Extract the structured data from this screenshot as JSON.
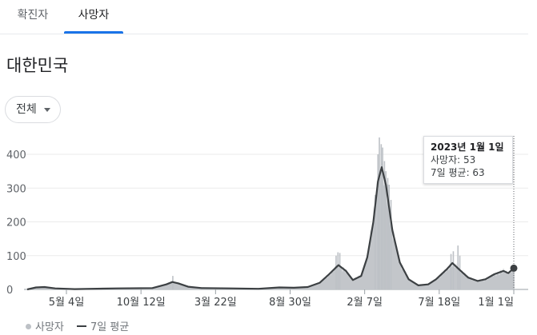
{
  "tabs": [
    {
      "label": "확진자",
      "active": false
    },
    {
      "label": "사망자",
      "active": true
    }
  ],
  "region_title": "대한민국",
  "period_dropdown": {
    "selected": "전체"
  },
  "tooltip": {
    "date": "2023년 1월 1일",
    "deaths_line": "사망자: 53",
    "avg_line": "7일 평균: 63"
  },
  "legend": {
    "series1": "사망자",
    "series2": "7일 평균"
  },
  "colors": {
    "bars": "#bdc1c6",
    "avg_line": "#3c4043",
    "tab_accent": "#1a73e8",
    "area_fill": "#c3c6ca"
  },
  "chart_data": {
    "type": "bar",
    "xlabel": "",
    "ylabel": "",
    "ylim": [
      0,
      450
    ],
    "yticks": [
      0,
      100,
      200,
      300,
      400
    ],
    "xtick_labels": [
      "5월 4일",
      "10월 12일",
      "3월 22일",
      "8월 30일",
      "2월 7일",
      "7월 18일",
      "1월 1일"
    ],
    "x_start": "2020-02-20",
    "x_end": "2023-01-01",
    "series": [
      {
        "name": "7일 평균",
        "type": "line",
        "points": [
          [
            "2020-02-20",
            0
          ],
          [
            "2020-03-10",
            6
          ],
          [
            "2020-03-28",
            7
          ],
          [
            "2020-04-20",
            3
          ],
          [
            "2020-06-01",
            1
          ],
          [
            "2020-09-01",
            3
          ],
          [
            "2020-11-15",
            4
          ],
          [
            "2020-12-15",
            15
          ],
          [
            "2020-12-28",
            22
          ],
          [
            "2021-01-10",
            18
          ],
          [
            "2021-01-31",
            8
          ],
          [
            "2021-03-01",
            4
          ],
          [
            "2021-05-01",
            3
          ],
          [
            "2021-07-01",
            2
          ],
          [
            "2021-08-15",
            6
          ],
          [
            "2021-09-15",
            5
          ],
          [
            "2021-10-15",
            7
          ],
          [
            "2021-11-10",
            20
          ],
          [
            "2021-11-30",
            45
          ],
          [
            "2021-12-20",
            72
          ],
          [
            "2022-01-05",
            55
          ],
          [
            "2022-01-20",
            28
          ],
          [
            "2022-02-07",
            40
          ],
          [
            "2022-02-20",
            95
          ],
          [
            "2022-03-05",
            200
          ],
          [
            "2022-03-15",
            320
          ],
          [
            "2022-03-23",
            362
          ],
          [
            "2022-04-01",
            310
          ],
          [
            "2022-04-15",
            175
          ],
          [
            "2022-05-01",
            80
          ],
          [
            "2022-05-20",
            30
          ],
          [
            "2022-06-10",
            12
          ],
          [
            "2022-07-01",
            15
          ],
          [
            "2022-07-18",
            30
          ],
          [
            "2022-08-10",
            60
          ],
          [
            "2022-08-22",
            78
          ],
          [
            "2022-09-05",
            60
          ],
          [
            "2022-09-25",
            35
          ],
          [
            "2022-10-15",
            25
          ],
          [
            "2022-11-01",
            30
          ],
          [
            "2022-11-20",
            45
          ],
          [
            "2022-12-10",
            55
          ],
          [
            "2022-12-20",
            48
          ],
          [
            "2023-01-01",
            63
          ]
        ]
      },
      {
        "name": "사망자",
        "type": "bar",
        "peaks": [
          [
            "2022-03-18",
            450
          ],
          [
            "2022-03-22",
            430
          ],
          [
            "2022-03-25",
            420
          ],
          [
            "2022-03-15",
            400
          ],
          [
            "2022-03-29",
            380
          ],
          [
            "2022-04-01",
            350
          ],
          [
            "2022-04-05",
            330
          ],
          [
            "2022-04-08",
            310
          ],
          [
            "2022-04-12",
            265
          ],
          [
            "2022-03-09",
            280
          ],
          [
            "2021-12-19",
            110
          ],
          [
            "2021-12-23",
            108
          ],
          [
            "2021-12-15",
            100
          ],
          [
            "2022-08-24",
            113
          ],
          [
            "2022-08-19",
            105
          ],
          [
            "2022-09-03",
            130
          ],
          [
            "2022-09-07",
            100
          ],
          [
            "2020-12-29",
            40
          ],
          [
            "2023-01-01",
            53
          ]
        ]
      }
    ]
  }
}
